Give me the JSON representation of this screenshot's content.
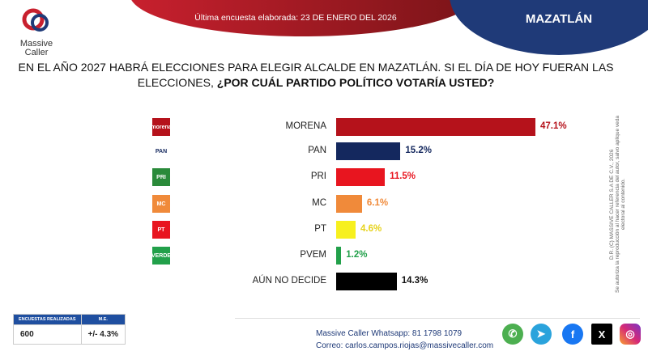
{
  "header": {
    "date": "Última encuesta elaborada: 23 DE ENERO DEL 2026",
    "city": "MAZATLÁN",
    "logo_line1": "Massive",
    "logo_line2": "Caller"
  },
  "question": {
    "normal": "EN EL AÑO 2027 HABRÁ ELECCIONES PARA ELEGIR ALCALDE EN MAZATLÁN. SI EL DÍA DE HOY FUERAN LAS ELECCIONES, ",
    "bold": "¿POR CUÁL PARTIDO POLÍTICO VOTARÍA USTED?"
  },
  "chart_data": {
    "type": "bar",
    "orientation": "horizontal",
    "categories": [
      "MORENA",
      "PAN",
      "PRI",
      "MC",
      "PT",
      "PVEM",
      "AÚN NO DECIDE"
    ],
    "values": [
      47.1,
      15.2,
      11.5,
      6.1,
      4.6,
      1.2,
      14.3
    ],
    "labels": [
      "47.1%",
      "15.2%",
      "11.5%",
      "6.1%",
      "4.6%",
      "1.2%",
      "14.3%"
    ],
    "colors": [
      "#b5121b",
      "#14285e",
      "#e8151f",
      "#f08a3a",
      "#f7f01e",
      "#22a04a",
      "#000000"
    ],
    "label_colors": [
      "#b5121b",
      "#14285e",
      "#e8151f",
      "#f08a3a",
      "#e6d21a",
      "#22a04a",
      "#111111"
    ],
    "icons": [
      "morena-logo",
      "pan-logo",
      "pri-logo",
      "mc-logo",
      "pt-logo",
      "pvem-logo",
      ""
    ]
  },
  "copyright": {
    "line1": "D.R. (C) MASSIVE CALLER S.A DE C.V., 2026",
    "line2": "Se autoriza la reproducción al hacer referencia del autor, salvo aplique veda electoral al contenido."
  },
  "survey_table": {
    "headers": [
      "ENCUESTAS REALIZADAS",
      "M.E."
    ],
    "values": [
      "600",
      "+/- 4.3%"
    ]
  },
  "contact": {
    "whatsapp": "Massive Caller Whatsapp: 81 1798 1079",
    "email_label": "Correo:",
    "email": "carlos.campos.riojas@massivecaller.com"
  },
  "social": [
    "whatsapp-icon",
    "telegram-icon",
    "facebook-icon",
    "x-icon",
    "instagram-icon"
  ]
}
